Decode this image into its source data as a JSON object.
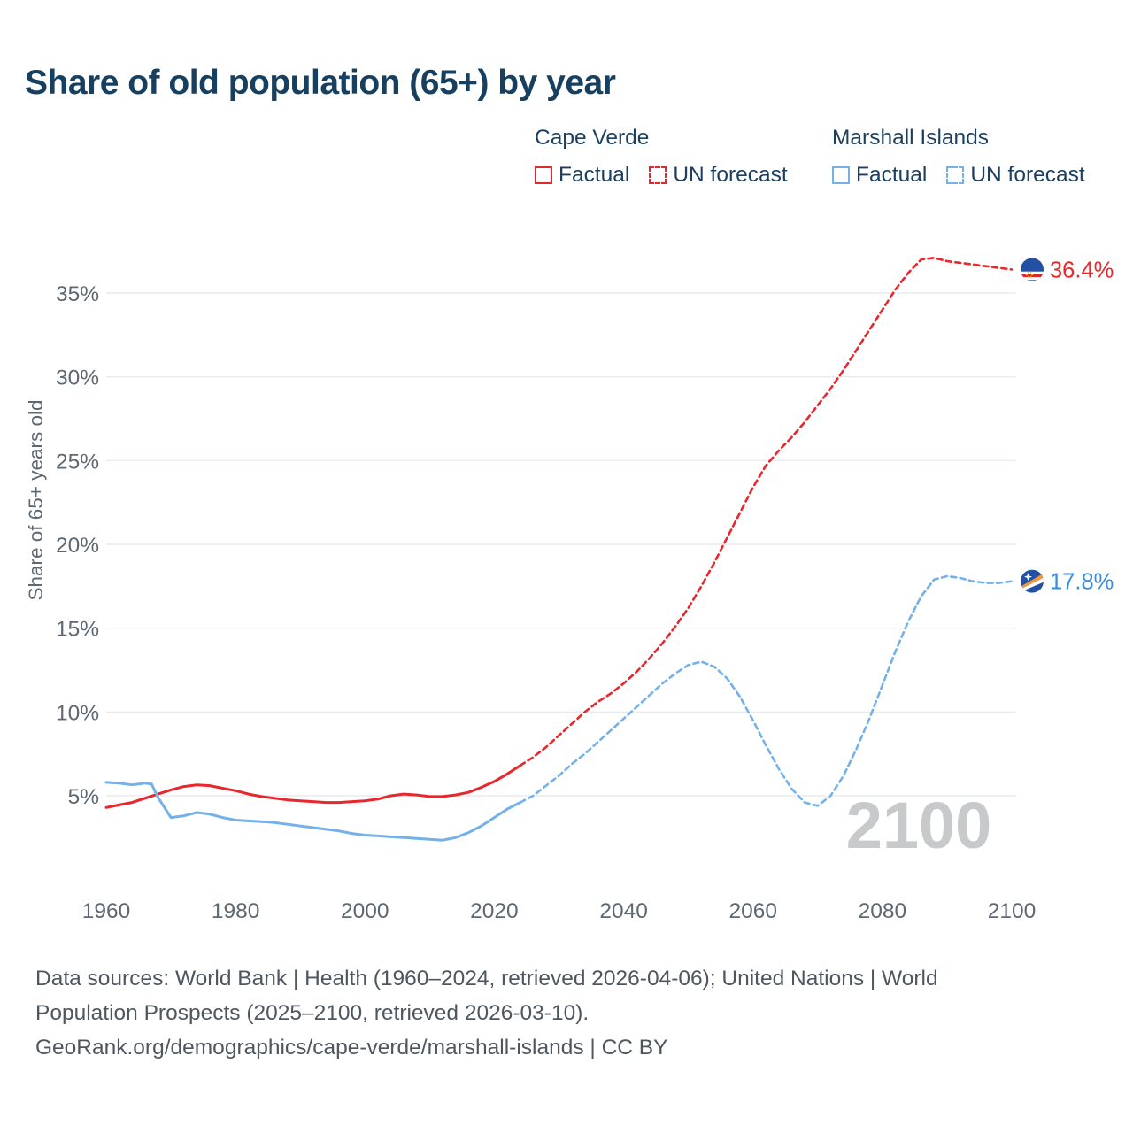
{
  "title": "Share of old population (65+) by year",
  "watermark": "2100",
  "legend": {
    "groups": [
      {
        "name": "Cape Verde",
        "items": [
          {
            "label": "Factual",
            "style": "solid",
            "color": "#e8262b"
          },
          {
            "label": "UN forecast",
            "style": "dashed",
            "color": "#e8262b"
          }
        ]
      },
      {
        "name": "Marshall Islands",
        "items": [
          {
            "label": "Factual",
            "style": "solid",
            "color": "#74b1e8"
          },
          {
            "label": "UN forecast",
            "style": "dashed",
            "color": "#74b1e8"
          }
        ]
      }
    ]
  },
  "footer_lines": [
    "Data sources: World Bank | Health (1960–2024, retrieved 2026-04-06); United Nations | World",
    "Population Prospects (2025–2100, retrieved 2026-03-10).",
    "GeoRank.org/demographics/cape-verde/marshall-islands | CC BY"
  ],
  "colors": {
    "title": "#173f5f",
    "axis_text": "#5d6873",
    "grid": "#e9ecef",
    "watermark": "#c7c9cb",
    "cape_verde": "#e8262b",
    "marshall": "#74b1e8",
    "marshall_label": "#3a8cdb",
    "footer_text": "#4e575f"
  },
  "chart_data": {
    "type": "line",
    "title": "Share of old population (65+) by year",
    "xlabel": "",
    "ylabel": "Share of 65+ years old",
    "xlim": [
      1960,
      2100
    ],
    "ylim": [
      0,
      39
    ],
    "grid": "horizontal",
    "x_ticks": [
      1960,
      1980,
      2000,
      2020,
      2040,
      2060,
      2080,
      2100
    ],
    "x_tick_labels": [
      "1960",
      "1980",
      "2000",
      "2020",
      "2040",
      "2060",
      "2080",
      "2100"
    ],
    "y_ticks": [
      5,
      10,
      15,
      20,
      25,
      30,
      35
    ],
    "y_tick_labels": [
      "5%",
      "10%",
      "15%",
      "20%",
      "25%",
      "30%",
      "35%"
    ],
    "series": [
      {
        "name": "Cape Verde",
        "color": "#e8262b",
        "label_color": "#e8262b",
        "end_label": "36.4%",
        "end_value": 36.4,
        "factual": [
          [
            1960,
            4.3
          ],
          [
            1962,
            4.45
          ],
          [
            1964,
            4.6
          ],
          [
            1966,
            4.85
          ],
          [
            1968,
            5.1
          ],
          [
            1970,
            5.35
          ],
          [
            1972,
            5.55
          ],
          [
            1974,
            5.65
          ],
          [
            1976,
            5.6
          ],
          [
            1978,
            5.45
          ],
          [
            1980,
            5.3
          ],
          [
            1982,
            5.1
          ],
          [
            1984,
            4.95
          ],
          [
            1986,
            4.85
          ],
          [
            1988,
            4.75
          ],
          [
            1990,
            4.7
          ],
          [
            1992,
            4.65
          ],
          [
            1994,
            4.6
          ],
          [
            1996,
            4.6
          ],
          [
            1998,
            4.65
          ],
          [
            2000,
            4.7
          ],
          [
            2002,
            4.8
          ],
          [
            2004,
            5.0
          ],
          [
            2006,
            5.1
          ],
          [
            2008,
            5.05
          ],
          [
            2010,
            4.95
          ],
          [
            2012,
            4.95
          ],
          [
            2014,
            5.05
          ],
          [
            2016,
            5.2
          ],
          [
            2018,
            5.5
          ],
          [
            2020,
            5.85
          ],
          [
            2022,
            6.3
          ],
          [
            2024,
            6.8
          ]
        ],
        "forecast": [
          [
            2024,
            6.8
          ],
          [
            2026,
            7.3
          ],
          [
            2028,
            7.9
          ],
          [
            2030,
            8.6
          ],
          [
            2032,
            9.3
          ],
          [
            2034,
            10.0
          ],
          [
            2036,
            10.6
          ],
          [
            2038,
            11.1
          ],
          [
            2040,
            11.7
          ],
          [
            2042,
            12.4
          ],
          [
            2044,
            13.2
          ],
          [
            2046,
            14.1
          ],
          [
            2048,
            15.1
          ],
          [
            2050,
            16.2
          ],
          [
            2052,
            17.5
          ],
          [
            2054,
            18.9
          ],
          [
            2056,
            20.4
          ],
          [
            2058,
            21.9
          ],
          [
            2060,
            23.4
          ],
          [
            2062,
            24.7
          ],
          [
            2064,
            25.6
          ],
          [
            2066,
            26.4
          ],
          [
            2068,
            27.3
          ],
          [
            2070,
            28.3
          ],
          [
            2072,
            29.3
          ],
          [
            2074,
            30.4
          ],
          [
            2076,
            31.6
          ],
          [
            2078,
            32.8
          ],
          [
            2080,
            34.0
          ],
          [
            2082,
            35.2
          ],
          [
            2084,
            36.2
          ],
          [
            2086,
            37.0
          ],
          [
            2088,
            37.1
          ],
          [
            2090,
            36.9
          ],
          [
            2092,
            36.8
          ],
          [
            2094,
            36.7
          ],
          [
            2096,
            36.6
          ],
          [
            2098,
            36.5
          ],
          [
            2100,
            36.4
          ]
        ]
      },
      {
        "name": "Marshall Islands",
        "color": "#74b1e8",
        "label_color": "#3a8cdb",
        "end_label": "17.8%",
        "end_value": 17.8,
        "factual": [
          [
            1960,
            5.8
          ],
          [
            1962,
            5.75
          ],
          [
            1964,
            5.65
          ],
          [
            1966,
            5.75
          ],
          [
            1967,
            5.7
          ],
          [
            1968,
            4.9
          ],
          [
            1970,
            3.7
          ],
          [
            1972,
            3.8
          ],
          [
            1974,
            4.0
          ],
          [
            1976,
            3.9
          ],
          [
            1978,
            3.7
          ],
          [
            1980,
            3.55
          ],
          [
            1982,
            3.5
          ],
          [
            1984,
            3.45
          ],
          [
            1986,
            3.4
          ],
          [
            1988,
            3.3
          ],
          [
            1990,
            3.2
          ],
          [
            1992,
            3.1
          ],
          [
            1994,
            3.0
          ],
          [
            1996,
            2.9
          ],
          [
            1998,
            2.75
          ],
          [
            2000,
            2.65
          ],
          [
            2002,
            2.6
          ],
          [
            2004,
            2.55
          ],
          [
            2006,
            2.5
          ],
          [
            2008,
            2.45
          ],
          [
            2010,
            2.4
          ],
          [
            2012,
            2.35
          ],
          [
            2014,
            2.5
          ],
          [
            2016,
            2.8
          ],
          [
            2018,
            3.2
          ],
          [
            2020,
            3.7
          ],
          [
            2022,
            4.2
          ],
          [
            2024,
            4.6
          ]
        ],
        "forecast": [
          [
            2024,
            4.6
          ],
          [
            2026,
            5.0
          ],
          [
            2028,
            5.6
          ],
          [
            2030,
            6.2
          ],
          [
            2032,
            6.9
          ],
          [
            2034,
            7.5
          ],
          [
            2036,
            8.2
          ],
          [
            2038,
            8.9
          ],
          [
            2040,
            9.6
          ],
          [
            2042,
            10.3
          ],
          [
            2044,
            11.0
          ],
          [
            2046,
            11.7
          ],
          [
            2048,
            12.3
          ],
          [
            2050,
            12.8
          ],
          [
            2052,
            13.0
          ],
          [
            2054,
            12.7
          ],
          [
            2056,
            12.0
          ],
          [
            2058,
            10.9
          ],
          [
            2060,
            9.5
          ],
          [
            2062,
            8.0
          ],
          [
            2064,
            6.6
          ],
          [
            2066,
            5.4
          ],
          [
            2068,
            4.6
          ],
          [
            2070,
            4.4
          ],
          [
            2072,
            5.0
          ],
          [
            2074,
            6.2
          ],
          [
            2076,
            7.8
          ],
          [
            2078,
            9.6
          ],
          [
            2080,
            11.6
          ],
          [
            2082,
            13.6
          ],
          [
            2084,
            15.4
          ],
          [
            2086,
            16.9
          ],
          [
            2088,
            17.9
          ],
          [
            2090,
            18.1
          ],
          [
            2092,
            18.0
          ],
          [
            2094,
            17.8
          ],
          [
            2096,
            17.7
          ],
          [
            2098,
            17.7
          ],
          [
            2100,
            17.8
          ]
        ]
      }
    ]
  }
}
